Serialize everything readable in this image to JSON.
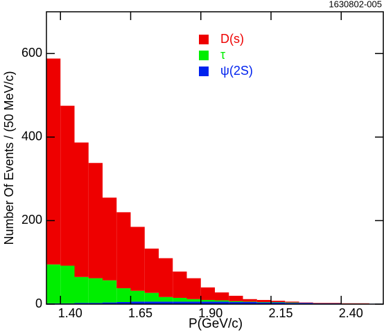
{
  "chart_data": {
    "type": "stacked_histogram",
    "corner_label": "1630802-005",
    "x_label": "P(GeV/c)",
    "y_label": "Number Of Events / (50 MeV/c)",
    "bins": [
      1.35,
      1.4,
      1.45,
      1.5,
      1.55,
      1.6,
      1.65,
      1.7,
      1.75,
      1.8,
      1.85,
      1.9,
      1.95,
      2.0,
      2.05,
      2.1,
      2.15,
      2.2,
      2.25,
      2.3,
      2.35,
      2.4,
      2.45,
      2.5,
      2.55
    ],
    "xlim": [
      1.35,
      2.55
    ],
    "xticks": [
      {
        "value": 1.4,
        "label": "1.40"
      },
      {
        "value": 1.65,
        "label": "1.65"
      },
      {
        "value": 1.9,
        "label": "1.90"
      },
      {
        "value": 2.15,
        "label": "2.15"
      },
      {
        "value": 2.4,
        "label": "2.40"
      }
    ],
    "ylim": [
      0,
      700
    ],
    "yticks": [
      0,
      200,
      400,
      600
    ],
    "series": [
      {
        "name": "ψ(2S)",
        "color": "#0022ee",
        "values": [
          2,
          2,
          3,
          3,
          4,
          5,
          6,
          6,
          6,
          6,
          6,
          6,
          6,
          5,
          5,
          4,
          4,
          3,
          3,
          2,
          2,
          1,
          1,
          1
        ]
      },
      {
        "name": "τ",
        "color": "#00ee00",
        "values": [
          93,
          90,
          62,
          59,
          53,
          33,
          26,
          21,
          11,
          9,
          6,
          4,
          3,
          2,
          1,
          1,
          1,
          1,
          0,
          0,
          0,
          0,
          0,
          0
        ]
      },
      {
        "name": "D(s)",
        "color": "#ee0000",
        "values": [
          493,
          383,
          322,
          276,
          198,
          182,
          153,
          106,
          93,
          63,
          50,
          30,
          19,
          13,
          6,
          5,
          3,
          2,
          1,
          1,
          1,
          1,
          1,
          0
        ]
      }
    ],
    "legend_order": [
      2,
      1,
      0
    ]
  }
}
